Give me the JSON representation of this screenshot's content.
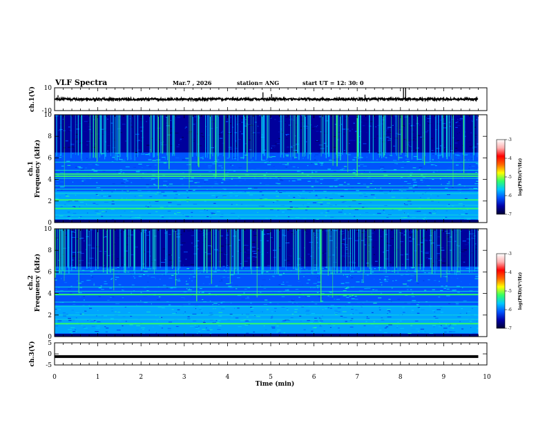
{
  "header": {
    "title": "VLF Spectra",
    "date": "Mar.7 , 2026",
    "station": "station= ANG",
    "start": "start UT = 12: 30: 0"
  },
  "chart_data": [
    {
      "type": "line",
      "panel": "ch1-waveform",
      "ylabel": "ch.1(V)",
      "ylim": [
        -10,
        10
      ],
      "yticks": [
        "10",
        "-10"
      ],
      "xlim": [
        0,
        10
      ],
      "baseline": 0,
      "spikes": [
        {
          "x": 0.08,
          "y": 3.5
        },
        {
          "x": 4.82,
          "y": 6
        },
        {
          "x": 5.02,
          "y": 4.5
        },
        {
          "x": 7.18,
          "y": 4
        },
        {
          "x": 8.07,
          "y": 10
        },
        {
          "x": 8.12,
          "y": 10
        }
      ]
    },
    {
      "type": "heatmap",
      "panel": "ch1-spectrogram",
      "ylabel": "ch.1 Frequency (kHz)",
      "ylim": [
        0,
        10
      ],
      "yticks": [
        "0",
        "2",
        "4",
        "6",
        "8",
        "10"
      ],
      "xlim": [
        0,
        10
      ],
      "data_end_min": 9.8,
      "zlim": [
        -7,
        -3
      ],
      "colorbar_label": "log(PSD)(V²/Hz)",
      "colorbar_ticks": [
        "-3",
        "-4",
        "-5",
        "-6",
        "-7"
      ],
      "bands_khz": [
        0.4,
        0.7,
        1.3,
        1.6,
        2.1,
        2.7,
        3.1,
        3.4,
        4.1,
        4.3,
        4.5,
        4.85,
        5.6
      ],
      "strong_bands_khz": [
        1.3,
        2.1,
        4.3,
        4.5
      ],
      "upper_band_khz": [
        6.5,
        10
      ]
    },
    {
      "type": "heatmap",
      "panel": "ch2-spectrogram",
      "ylabel": "ch.2 Frequency (kHz)",
      "ylim": [
        0,
        10
      ],
      "yticks": [
        "0",
        "2",
        "4",
        "6",
        "8",
        "10"
      ],
      "xlim": [
        0,
        10
      ],
      "data_end_min": 9.8,
      "zlim": [
        -7,
        -3
      ],
      "colorbar_label": "log(PSD)(V²/Hz)",
      "colorbar_ticks": [
        "-3",
        "-4",
        "-5",
        "-6",
        "-7"
      ],
      "bands_khz": [
        1.2,
        1.6,
        2.0,
        2.8,
        3.2,
        3.9,
        4.2,
        4.6,
        5.8,
        6.1
      ],
      "strong_bands_khz": [
        1.2,
        3.9
      ],
      "upper_band_khz": [
        6.5,
        10
      ]
    },
    {
      "type": "line",
      "panel": "ch3-waveform",
      "ylabel": "ch.3(V)",
      "xlabel": "Time (min)",
      "ylim": [
        -5,
        5
      ],
      "yticks": [
        "5",
        "0",
        "-5"
      ],
      "xlim": [
        0,
        10
      ],
      "xticks": [
        "0",
        "1",
        "2",
        "3",
        "4",
        "5",
        "6",
        "7",
        "8",
        "9",
        "10"
      ],
      "baseline": -1.2,
      "data_end_min": 9.8
    }
  ],
  "colors": {
    "colormap": [
      "#000033",
      "#0000a8",
      "#0055ff",
      "#00c8ff",
      "#33ff66",
      "#ffff00",
      "#ff6600",
      "#ff0000",
      "#ffb0b0",
      "#ffffff"
    ],
    "trace": "#000000"
  }
}
